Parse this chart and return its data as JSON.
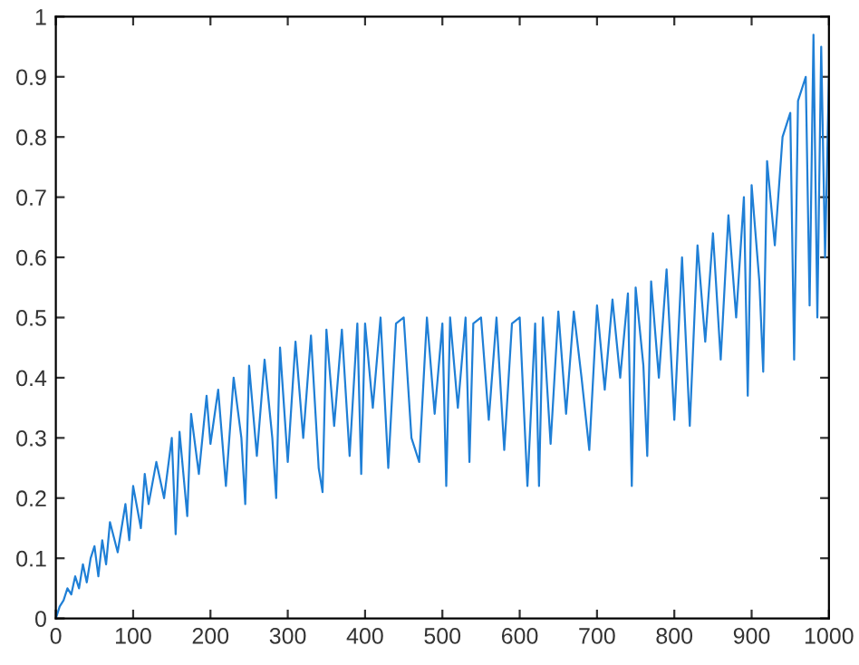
{
  "chart_data": {
    "type": "line",
    "x": [
      0,
      5,
      10,
      15,
      20,
      25,
      30,
      35,
      40,
      45,
      50,
      55,
      60,
      65,
      70,
      80,
      90,
      95,
      100,
      110,
      115,
      120,
      130,
      140,
      150,
      155,
      160,
      170,
      175,
      185,
      195,
      200,
      210,
      220,
      230,
      240,
      245,
      250,
      260,
      270,
      280,
      285,
      290,
      300,
      310,
      320,
      330,
      340,
      345,
      350,
      360,
      370,
      380,
      390,
      395,
      400,
      410,
      420,
      430,
      440,
      450,
      460,
      470,
      480,
      490,
      500,
      505,
      510,
      520,
      530,
      535,
      540,
      550,
      560,
      570,
      580,
      590,
      600,
      610,
      620,
      625,
      630,
      640,
      650,
      660,
      670,
      680,
      690,
      700,
      710,
      720,
      730,
      740,
      745,
      750,
      760,
      765,
      770,
      780,
      790,
      800,
      810,
      820,
      830,
      840,
      850,
      860,
      870,
      880,
      890,
      895,
      900,
      910,
      915,
      920,
      930,
      940,
      950,
      955,
      960,
      970,
      975,
      980,
      985,
      990,
      995,
      1000
    ],
    "series": [
      {
        "color": "#1f7fd6",
        "values": [
          0,
          0.02,
          0.03,
          0.05,
          0.04,
          0.07,
          0.05,
          0.09,
          0.06,
          0.1,
          0.12,
          0.07,
          0.13,
          0.09,
          0.16,
          0.11,
          0.19,
          0.13,
          0.22,
          0.15,
          0.24,
          0.19,
          0.26,
          0.2,
          0.3,
          0.14,
          0.31,
          0.17,
          0.34,
          0.24,
          0.37,
          0.29,
          0.38,
          0.22,
          0.4,
          0.3,
          0.19,
          0.42,
          0.27,
          0.43,
          0.3,
          0.2,
          0.45,
          0.26,
          0.46,
          0.3,
          0.47,
          0.25,
          0.21,
          0.48,
          0.32,
          0.48,
          0.27,
          0.49,
          0.24,
          0.49,
          0.35,
          0.5,
          0.25,
          0.49,
          0.5,
          0.3,
          0.26,
          0.5,
          0.34,
          0.49,
          0.22,
          0.5,
          0.35,
          0.5,
          0.26,
          0.49,
          0.5,
          0.33,
          0.5,
          0.28,
          0.49,
          0.5,
          0.22,
          0.49,
          0.22,
          0.5,
          0.29,
          0.51,
          0.34,
          0.51,
          0.4,
          0.28,
          0.52,
          0.38,
          0.53,
          0.4,
          0.54,
          0.22,
          0.55,
          0.42,
          0.27,
          0.56,
          0.4,
          0.58,
          0.33,
          0.6,
          0.32,
          0.62,
          0.46,
          0.64,
          0.43,
          0.67,
          0.5,
          0.7,
          0.37,
          0.72,
          0.56,
          0.41,
          0.76,
          0.62,
          0.8,
          0.84,
          0.43,
          0.86,
          0.9,
          0.52,
          0.97,
          0.5,
          0.95,
          0.6,
          0.9
        ]
      }
    ],
    "xlim": [
      0,
      1000
    ],
    "ylim": [
      0,
      1
    ],
    "xticks": [
      0,
      100,
      200,
      300,
      400,
      500,
      600,
      700,
      800,
      900,
      1000
    ],
    "yticks": [
      0,
      0.1,
      0.2,
      0.3,
      0.4,
      0.5,
      0.6,
      0.7,
      0.8,
      0.9,
      1
    ],
    "grid": false,
    "legend": false,
    "marker": "none",
    "line_style": "solid"
  }
}
